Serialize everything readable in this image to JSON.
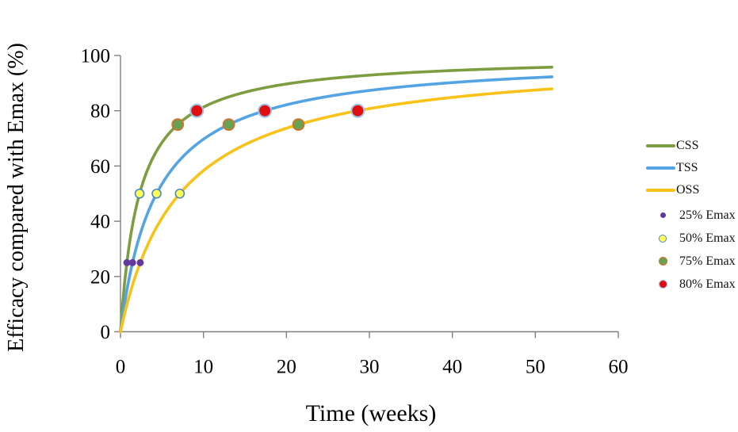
{
  "figure": {
    "background": "#ffffff",
    "axis_color": "#7f7f7f",
    "tick_label_color": "#000000"
  },
  "chart_data": {
    "type": "line",
    "title": "",
    "xlabel": "Time (weeks)",
    "ylabel": "Efficacy compared with Emax (%)",
    "xlim": [
      0,
      60
    ],
    "ylim": [
      0,
      100
    ],
    "xticks": [
      0,
      10,
      20,
      30,
      40,
      50,
      60
    ],
    "yticks": [
      0,
      20,
      40,
      60,
      80,
      100
    ],
    "grid": false,
    "legend_position": "right",
    "model": "efficacy(t) = 100 * t / (ET50 + t)",
    "series": [
      {
        "name": "CSS",
        "color": "#7c9d40",
        "et50_weeks": 2.3,
        "t_start": 0,
        "t_end": 52,
        "line_width": 3.6
      },
      {
        "name": "TSS",
        "color": "#54a4e4",
        "et50_weeks": 4.35,
        "t_start": 0,
        "t_end": 52,
        "line_width": 3.6
      },
      {
        "name": "OSS",
        "color": "#f9c218",
        "et50_weeks": 7.15,
        "t_start": 0,
        "t_end": 52,
        "line_width": 3.6
      }
    ],
    "markers": [
      {
        "name": "25% Emax",
        "fill": "#63399f",
        "stroke": "#63399f",
        "radius": 4,
        "stroke_width": 1,
        "legend_diameter": 7,
        "points": [
          {
            "t_weeks": 0.77,
            "efficacy_pct": 25
          },
          {
            "t_weeks": 1.45,
            "efficacy_pct": 25
          },
          {
            "t_weeks": 2.38,
            "efficacy_pct": 25
          }
        ]
      },
      {
        "name": "50% Emax",
        "fill": "#fcff54",
        "stroke": "#4c86cb",
        "radius": 5.5,
        "stroke_width": 1.6,
        "legend_diameter": 10,
        "points": [
          {
            "t_weeks": 2.3,
            "efficacy_pct": 50
          },
          {
            "t_weeks": 4.35,
            "efficacy_pct": 50
          },
          {
            "t_weeks": 7.15,
            "efficacy_pct": 50
          }
        ]
      },
      {
        "name": "75% Emax",
        "fill": "#68a14f",
        "stroke": "#d7702b",
        "radius": 7,
        "stroke_width": 1.8,
        "legend_diameter": 11,
        "points": [
          {
            "t_weeks": 6.9,
            "efficacy_pct": 75
          },
          {
            "t_weeks": 13.05,
            "efficacy_pct": 75
          },
          {
            "t_weeks": 21.45,
            "efficacy_pct": 75
          }
        ]
      },
      {
        "name": "80% Emax",
        "fill": "#df0f0f",
        "stroke": "#9dc4ea",
        "radius": 8,
        "stroke_width": 2,
        "legend_diameter": 11,
        "points": [
          {
            "t_weeks": 9.2,
            "efficacy_pct": 80
          },
          {
            "t_weeks": 17.4,
            "efficacy_pct": 80
          },
          {
            "t_weeks": 28.6,
            "efficacy_pct": 80
          }
        ]
      }
    ]
  }
}
